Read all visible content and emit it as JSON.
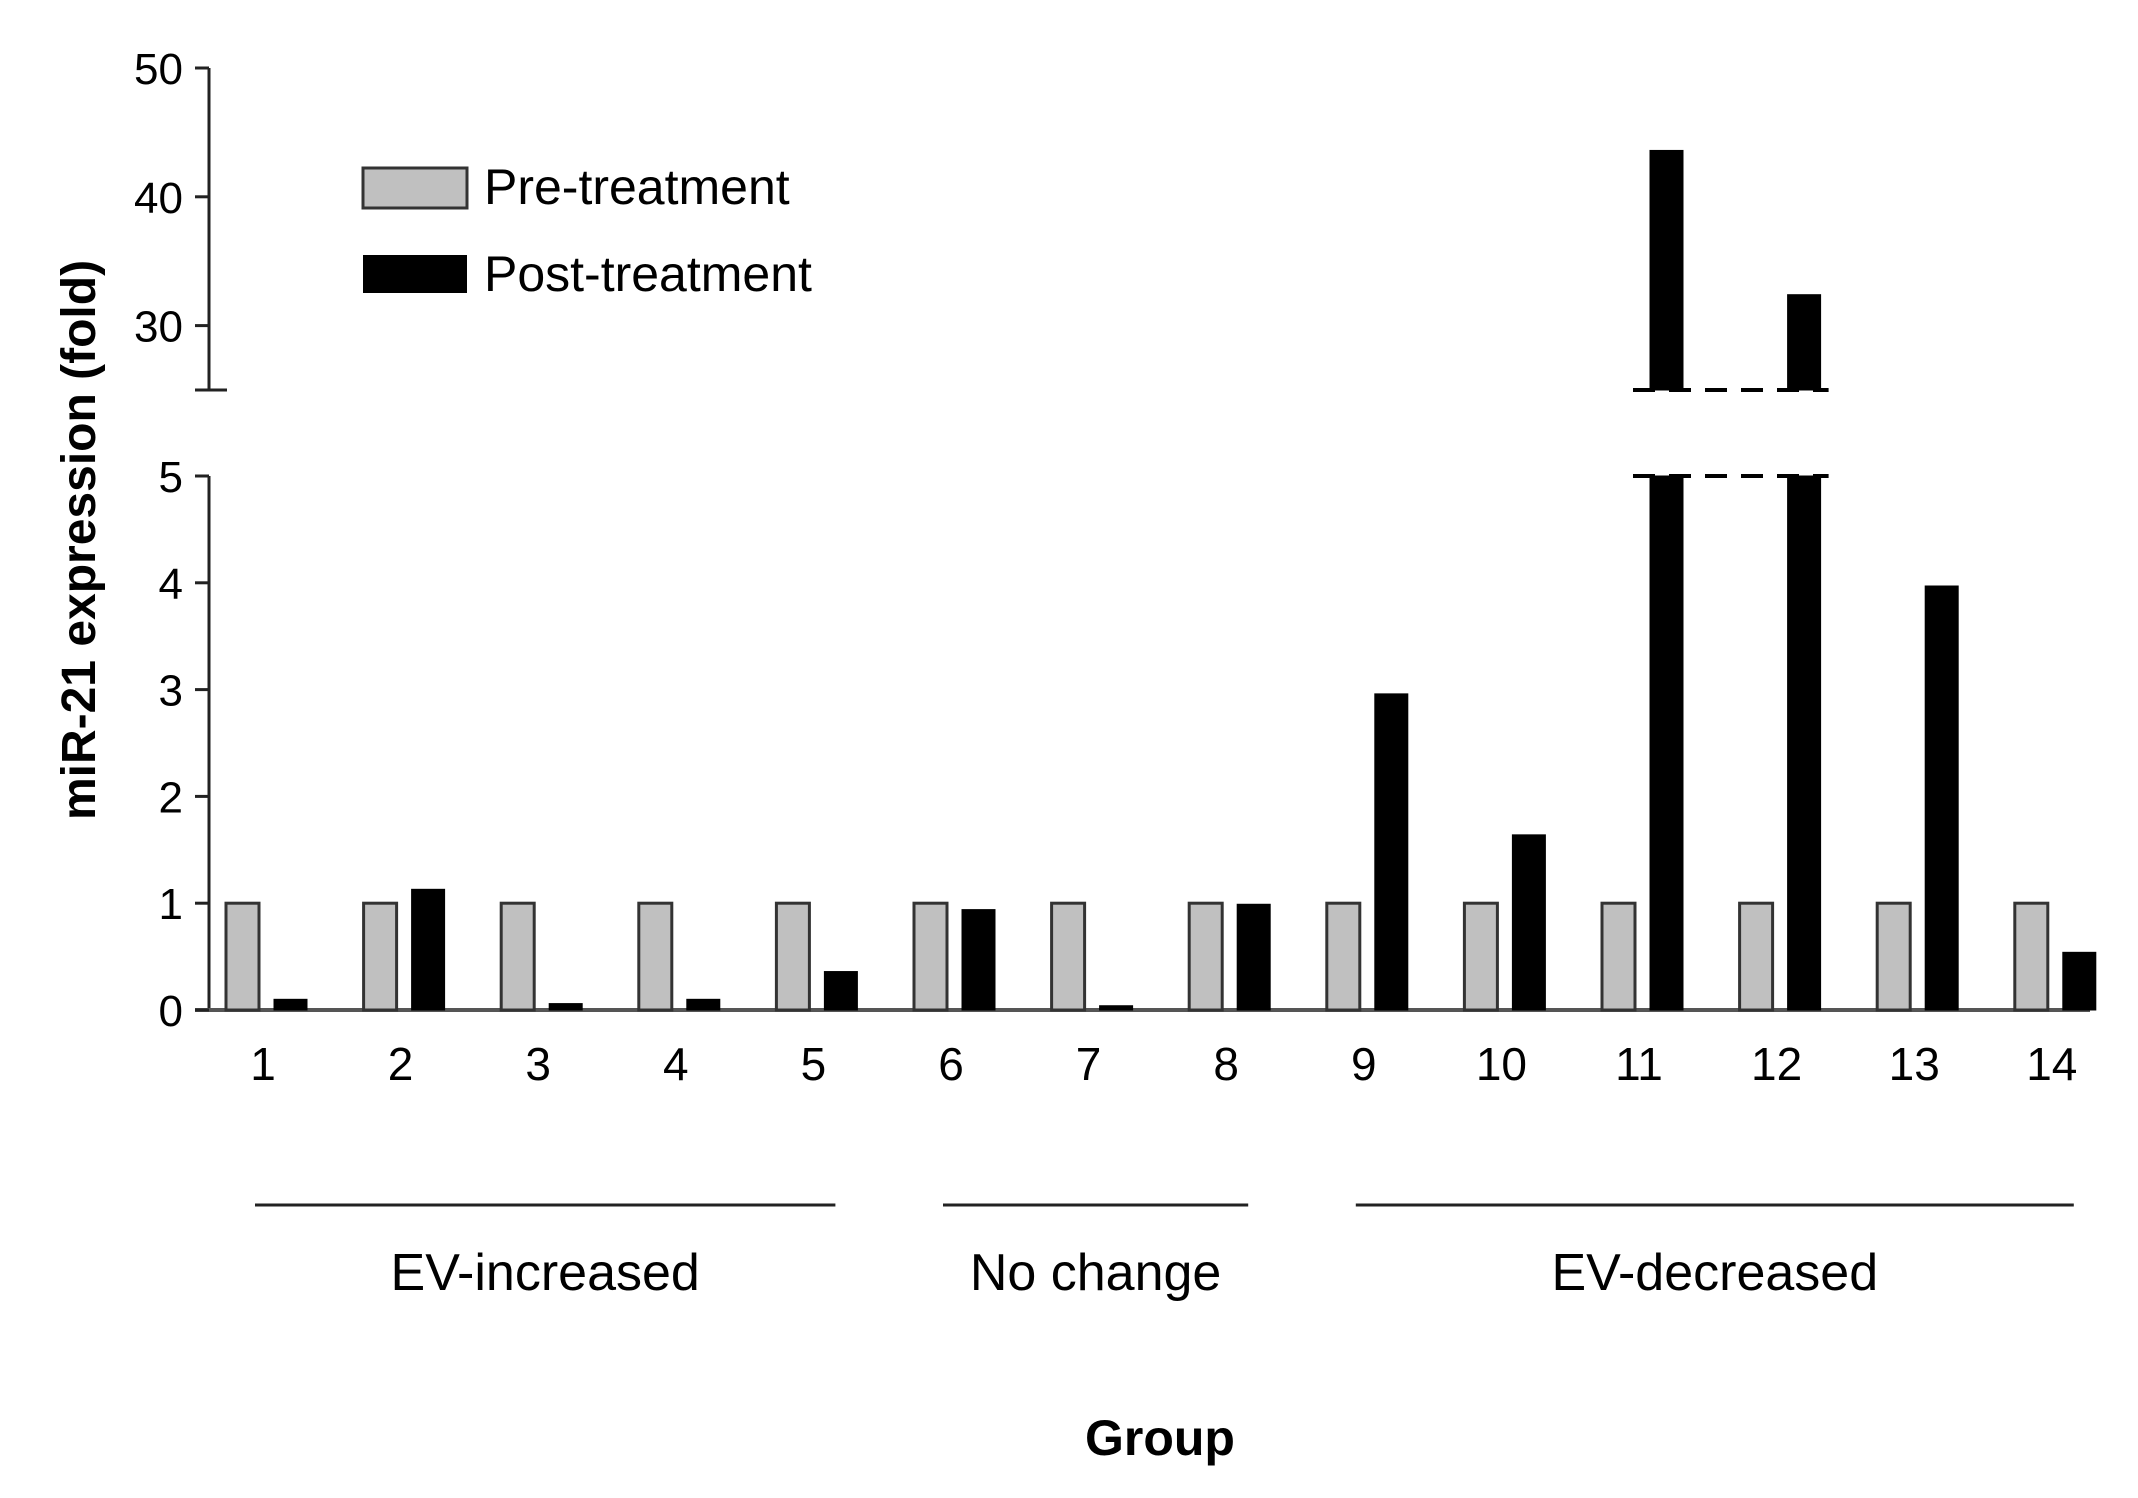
{
  "chart_data": {
    "type": "bar",
    "title": "",
    "xlabel": "Group",
    "ylabel": "miR-21 expression (fold)",
    "y_axis_break": true,
    "ylim_lower": [
      0,
      5
    ],
    "ylim_upper": [
      25,
      50
    ],
    "yticks_lower": [
      "0",
      "1",
      "2",
      "3",
      "4",
      "5"
    ],
    "yticks_upper": [
      "30",
      "40",
      "50"
    ],
    "categories": [
      "1",
      "2",
      "3",
      "4",
      "5",
      "6",
      "7",
      "8",
      "9",
      "10",
      "11",
      "12",
      "13",
      "14"
    ],
    "series": [
      {
        "name": "Pre-treatment",
        "color": "#c0c0c0",
        "values": [
          1,
          1,
          1,
          1,
          1,
          1,
          1,
          1,
          1,
          1,
          1,
          1,
          1,
          1
        ]
      },
      {
        "name": "Post-treatment",
        "color": "#000000",
        "values": [
          0.1,
          1.13,
          0.06,
          0.1,
          0.36,
          0.94,
          0.04,
          0.99,
          2.96,
          1.64,
          43.6,
          32.4,
          3.97,
          0.54
        ]
      }
    ],
    "category_groups": [
      {
        "label": "EV-increased",
        "from": "1",
        "to": "5"
      },
      {
        "label": "No change",
        "from": "6",
        "to": "8"
      },
      {
        "label": "EV-decreased",
        "from": "9",
        "to": "14"
      }
    ],
    "legend_position": "top-left",
    "grid": false
  }
}
